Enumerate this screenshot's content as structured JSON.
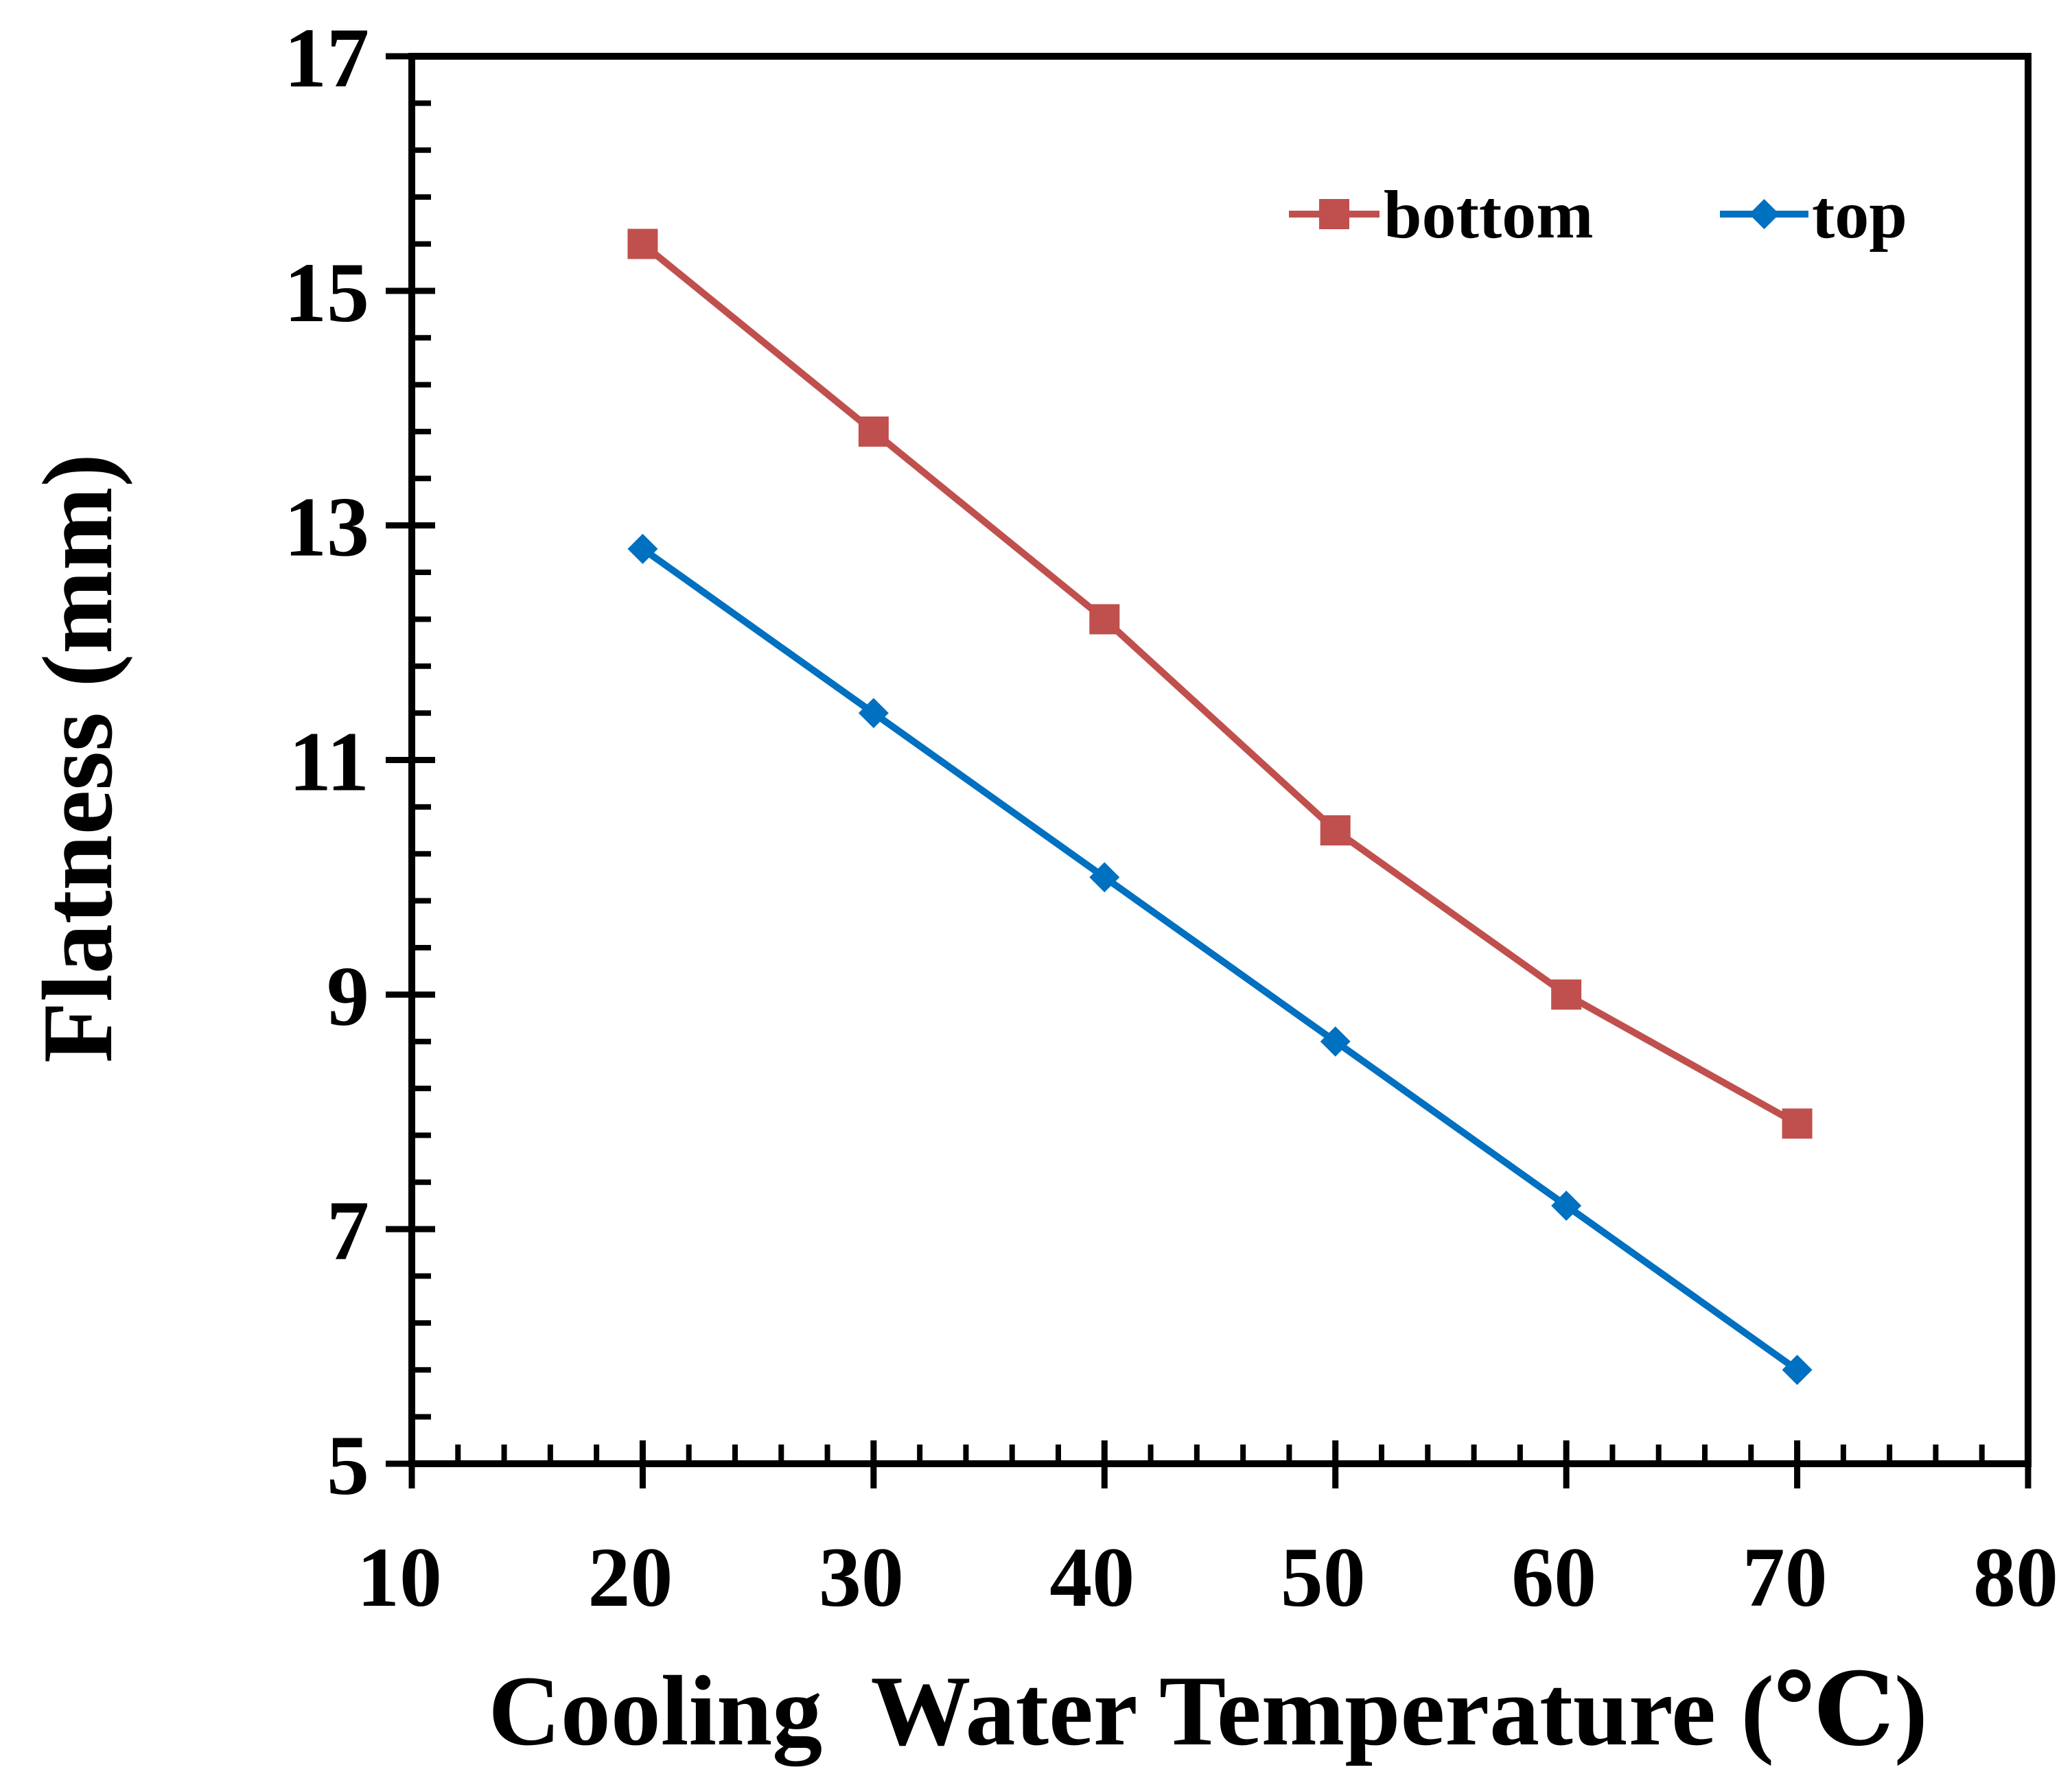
{
  "chart_data": {
    "type": "line",
    "title": "",
    "xlabel": "Cooling  Water Temperature (℃)",
    "ylabel": "Flatness (mm)",
    "xlim": [
      10,
      80
    ],
    "ylim": [
      5,
      17
    ],
    "x_ticks": [
      10,
      20,
      30,
      40,
      50,
      60,
      70,
      80
    ],
    "x_tick_labels": [
      "10",
      "20",
      "30",
      "40",
      "50",
      "60",
      "70",
      "80"
    ],
    "y_ticks": [
      5,
      7,
      9,
      11,
      13,
      15,
      17
    ],
    "y_tick_labels": [
      "5",
      "7",
      "9",
      "11",
      "13",
      "15",
      "17"
    ],
    "x_minor_step": 2,
    "y_minor_step": 0.4,
    "grid": false,
    "legend_position": "top-right",
    "series": [
      {
        "name": "bottom",
        "color": "#c0504d",
        "marker": "square",
        "x": [
          20,
          30,
          40,
          50,
          60,
          70
        ],
        "y": [
          15.4,
          13.8,
          12.2,
          10.4,
          9.0,
          7.9
        ]
      },
      {
        "name": "top",
        "color": "#0070c0",
        "marker": "diamond",
        "x": [
          20,
          30,
          40,
          50,
          60,
          70
        ],
        "y": [
          12.8,
          11.4,
          10.0,
          8.6,
          7.2,
          5.8
        ]
      }
    ]
  }
}
